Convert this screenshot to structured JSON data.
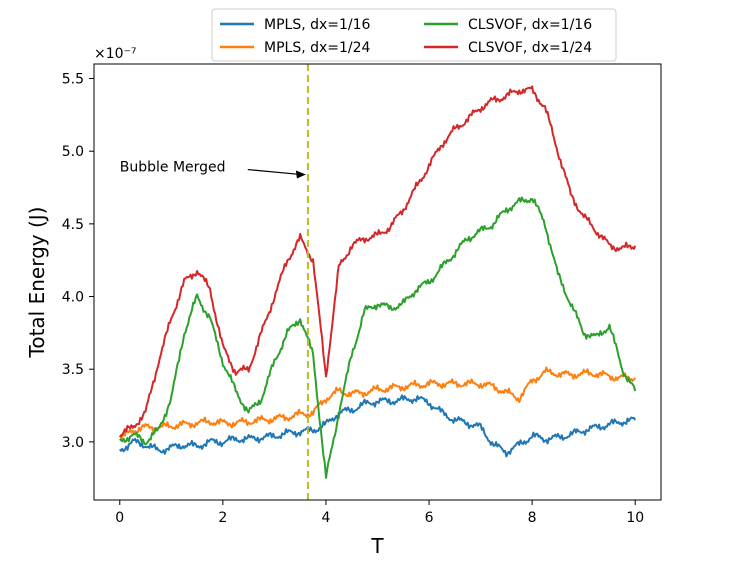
{
  "chart_data": {
    "type": "line",
    "title": "",
    "xlabel": "T",
    "ylabel": "Total Energy (J)",
    "y_scale_label": "×10⁻⁷",
    "xlim": [
      -0.5,
      10.5
    ],
    "ylim": [
      2.6,
      5.6
    ],
    "x_ticks": [
      0,
      2,
      4,
      6,
      8,
      10
    ],
    "x_tick_labels": [
      "0",
      "2",
      "4",
      "6",
      "8",
      "10"
    ],
    "y_ticks": [
      3.0,
      3.5,
      4.0,
      4.5,
      5.0,
      5.5
    ],
    "y_tick_labels": [
      "3.0",
      "3.5",
      "4.0",
      "4.5",
      "5.0",
      "5.5"
    ],
    "grid": false,
    "legend_position": "top",
    "vertical_line": {
      "x": 3.65,
      "color": "#bcbd22",
      "style": "dashed"
    },
    "annotation": {
      "text": "Bubble Merged",
      "xy": [
        3.65,
        4.84
      ],
      "text_xy": [
        0.0,
        4.86
      ]
    },
    "x": [
      0,
      0.25,
      0.5,
      0.75,
      1.0,
      1.25,
      1.5,
      1.75,
      2.0,
      2.25,
      2.5,
      2.75,
      3.0,
      3.25,
      3.5,
      3.75,
      4.0,
      4.25,
      4.5,
      4.75,
      5.0,
      5.25,
      5.5,
      5.75,
      6.0,
      6.25,
      6.5,
      6.75,
      7.0,
      7.25,
      7.5,
      7.75,
      8.0,
      8.25,
      8.5,
      8.75,
      9.0,
      9.25,
      9.5,
      9.75,
      10.0
    ],
    "series": [
      {
        "name": "MPLS, dx=1/16",
        "color": "#1f77b4",
        "values": [
          2.94,
          3.0,
          2.98,
          2.94,
          2.96,
          2.98,
          2.97,
          3.0,
          3.0,
          3.02,
          3.02,
          3.03,
          3.04,
          3.06,
          3.07,
          3.08,
          3.12,
          3.2,
          3.22,
          3.26,
          3.28,
          3.28,
          3.29,
          3.3,
          3.27,
          3.2,
          3.15,
          3.13,
          3.1,
          2.98,
          2.93,
          2.98,
          3.04,
          3.02,
          3.03,
          3.05,
          3.08,
          3.1,
          3.12,
          3.14,
          3.15
        ]
      },
      {
        "name": "MPLS, dx=1/24",
        "color": "#ff7f0e",
        "values": [
          3.02,
          3.08,
          3.1,
          3.1,
          3.11,
          3.12,
          3.13,
          3.14,
          3.13,
          3.13,
          3.14,
          3.15,
          3.16,
          3.17,
          3.19,
          3.2,
          3.3,
          3.35,
          3.33,
          3.34,
          3.36,
          3.37,
          3.38,
          3.39,
          3.4,
          3.4,
          3.4,
          3.4,
          3.4,
          3.38,
          3.34,
          3.3,
          3.42,
          3.48,
          3.47,
          3.46,
          3.47,
          3.47,
          3.45,
          3.44,
          3.44
        ]
      },
      {
        "name": "CLSVOF, dx=1/16",
        "color": "#2ca02c",
        "values": [
          3.0,
          3.05,
          3.0,
          3.08,
          3.3,
          3.75,
          4.0,
          3.85,
          3.55,
          3.35,
          3.2,
          3.3,
          3.55,
          3.75,
          3.85,
          3.6,
          2.75,
          3.2,
          3.6,
          3.9,
          3.95,
          3.92,
          3.95,
          4.05,
          4.1,
          4.2,
          4.3,
          4.4,
          4.45,
          4.5,
          4.6,
          4.65,
          4.68,
          4.5,
          4.15,
          3.95,
          3.75,
          3.72,
          3.8,
          3.5,
          3.35
        ]
      },
      {
        "name": "CLSVOF, dx=1/24",
        "color": "#d62728",
        "values": [
          3.05,
          3.1,
          3.2,
          3.55,
          3.85,
          4.1,
          4.18,
          4.05,
          3.65,
          3.48,
          3.5,
          3.75,
          4.0,
          4.25,
          4.4,
          4.25,
          3.45,
          4.2,
          4.35,
          4.4,
          4.42,
          4.48,
          4.6,
          4.75,
          4.9,
          5.05,
          5.15,
          5.22,
          5.3,
          5.35,
          5.38,
          5.42,
          5.42,
          5.3,
          5.0,
          4.7,
          4.55,
          4.45,
          4.35,
          4.33,
          4.35
        ]
      }
    ]
  }
}
